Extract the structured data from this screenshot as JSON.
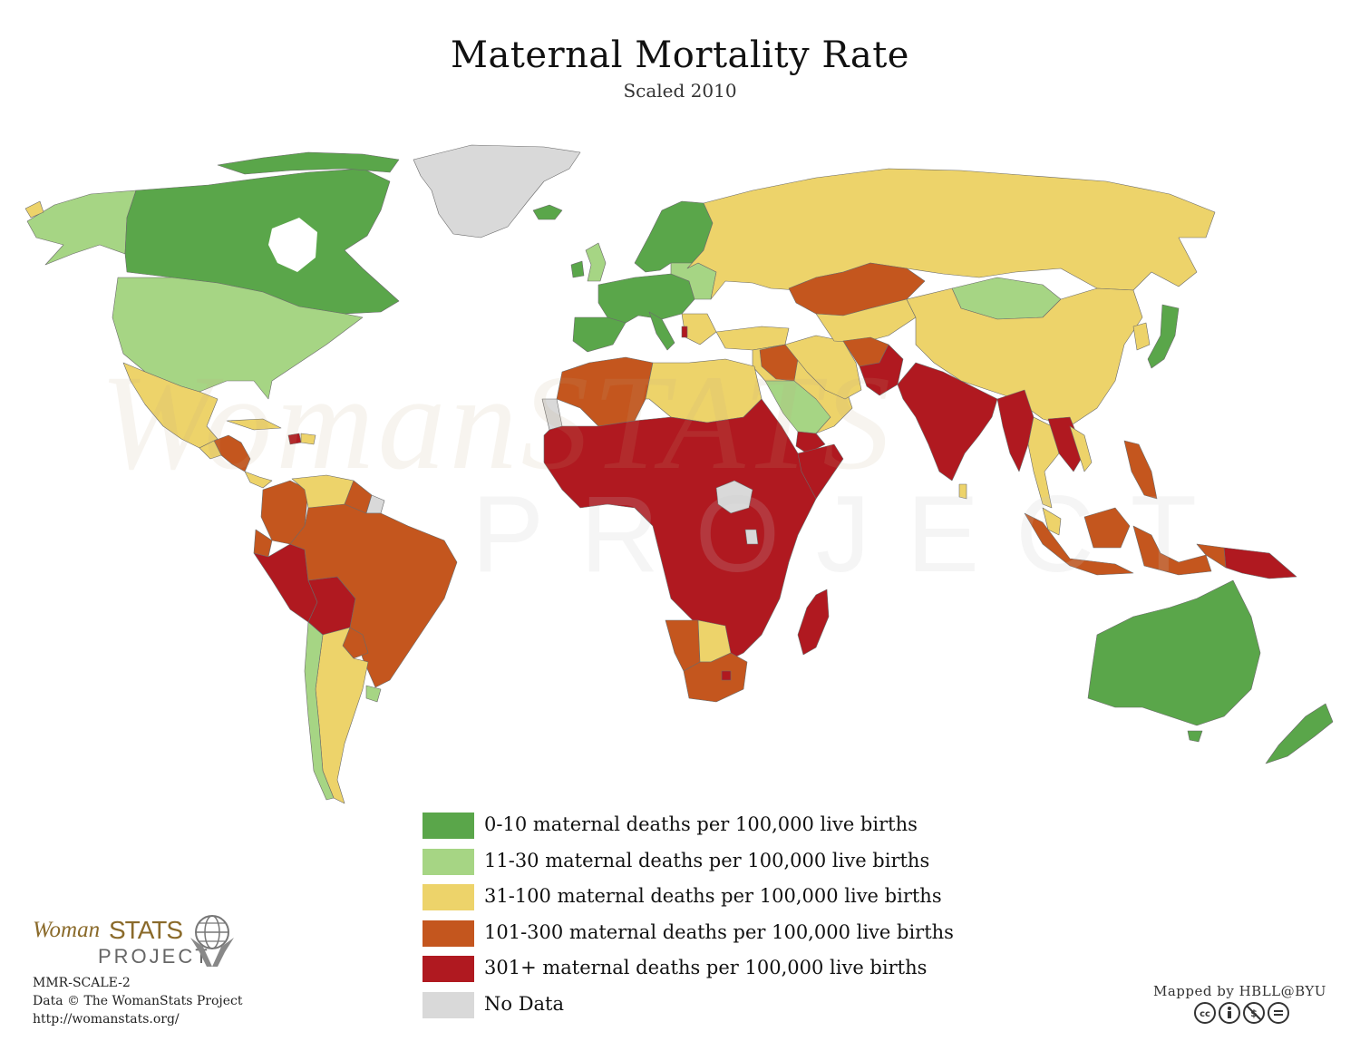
{
  "title": "Maternal Mortality Rate",
  "subtitle": "Scaled 2010",
  "colors": {
    "c0_10": "#5aa64a",
    "c11_30": "#a6d584",
    "c31_100": "#edd36a",
    "c101_300": "#c4561e",
    "c301_plus": "#b01920",
    "no_data": "#d9d9d9",
    "border": "#6a6a6a"
  },
  "legend": [
    {
      "label": "0-10 maternal deaths per 100,000 live births",
      "color": "#5aa64a"
    },
    {
      "label": "11-30 maternal deaths per 100,000 live births",
      "color": "#a6d584"
    },
    {
      "label": "31-100 maternal deaths per 100,000 live births",
      "color": "#edd36a"
    },
    {
      "label": "101-300 maternal deaths per 100,000 live births",
      "color": "#c4561e"
    },
    {
      "label": "301+ maternal deaths per 100,000 live births",
      "color": "#b01920"
    },
    {
      "label": "No Data",
      "color": "#d9d9d9"
    }
  ],
  "watermark": {
    "main": "WomanSTATS",
    "sub": "PROJECT"
  },
  "logo": {
    "woman": "Woman",
    "stats": "STATS",
    "project": "PROJECT"
  },
  "credits": {
    "code": "MMR-SCALE-2",
    "data": "Data © The WomanStats Project",
    "url": "http://womanstats.org/"
  },
  "mapped_by": "Mapped by HBLL@BYU",
  "license_icons": [
    "cc",
    "by",
    "nc",
    "nd"
  ]
}
